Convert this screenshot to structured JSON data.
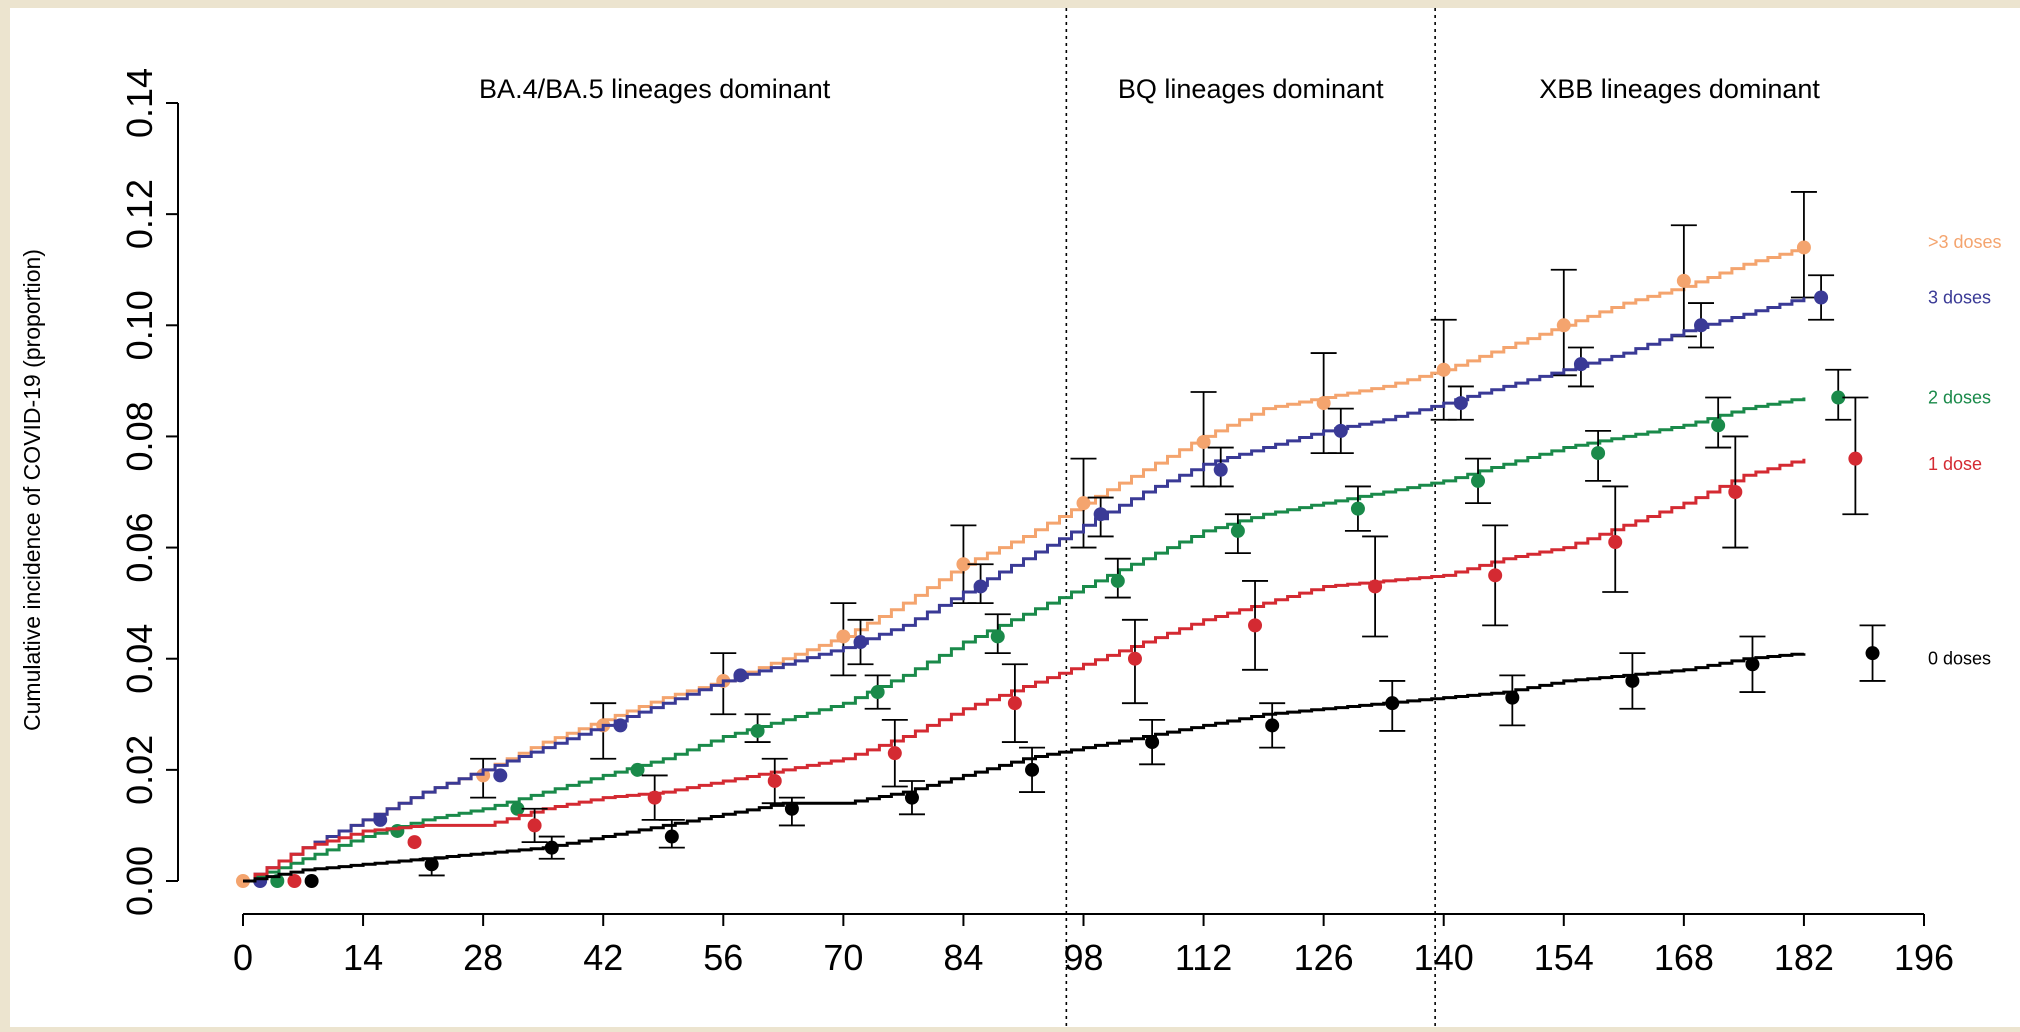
{
  "chart_data": {
    "type": "line",
    "title": "",
    "xlabel": "",
    "ylabel": "Cumulative incidence of COVID-19 (proportion)",
    "xlim": [
      0,
      196
    ],
    "ylim": [
      0,
      0.14
    ],
    "x_ticks": [
      "0",
      "14",
      "28",
      "42",
      "56",
      "70",
      "84",
      "98",
      "112",
      "126",
      "140",
      "154",
      "168",
      "182",
      "196"
    ],
    "y_ticks": [
      "0.00",
      "0.02",
      "0.04",
      "0.06",
      "0.08",
      "0.10",
      "0.12",
      "0.14"
    ],
    "periods": [
      {
        "label": "BA.4/BA.5 lineages dominant",
        "x_start": 0,
        "x_end": 96
      },
      {
        "label": "BQ lineages dominant",
        "x_start": 96,
        "x_end": 139
      },
      {
        "label": "XBB lineages dominant",
        "x_start": 139,
        "x_end": 196
      }
    ],
    "period_boundaries": [
      96,
      139
    ],
    "series": [
      {
        "name": ">3 doses",
        "color": "#f4a46e",
        "x": [
          0,
          7,
          14,
          21,
          28,
          35,
          42,
          49,
          56,
          63,
          70,
          77,
          84,
          91,
          98,
          105,
          112,
          119,
          126,
          133,
          140,
          147,
          154,
          161,
          168,
          175,
          182
        ],
        "y": [
          0,
          0.006,
          0.011,
          0.016,
          0.02,
          0.025,
          0.029,
          0.033,
          0.036,
          0.04,
          0.044,
          0.05,
          0.057,
          0.062,
          0.068,
          0.074,
          0.08,
          0.085,
          0.087,
          0.089,
          0.092,
          0.096,
          0.1,
          0.104,
          0.107,
          0.111,
          0.114
        ],
        "points": [
          {
            "x": 0,
            "y": 0.0
          },
          {
            "x": 28,
            "y": 0.019,
            "lo": 0.015,
            "hi": 0.022
          },
          {
            "x": 42,
            "y": 0.028,
            "lo": 0.022,
            "hi": 0.032
          },
          {
            "x": 56,
            "y": 0.036,
            "lo": 0.03,
            "hi": 0.041
          },
          {
            "x": 70,
            "y": 0.044,
            "lo": 0.037,
            "hi": 0.05
          },
          {
            "x": 84,
            "y": 0.057,
            "lo": 0.05,
            "hi": 0.064
          },
          {
            "x": 98,
            "y": 0.068,
            "lo": 0.06,
            "hi": 0.076
          },
          {
            "x": 112,
            "y": 0.079,
            "lo": 0.071,
            "hi": 0.088
          },
          {
            "x": 126,
            "y": 0.086,
            "lo": 0.077,
            "hi": 0.095
          },
          {
            "x": 140,
            "y": 0.092,
            "lo": 0.083,
            "hi": 0.101
          },
          {
            "x": 154,
            "y": 0.1,
            "lo": 0.091,
            "hi": 0.11
          },
          {
            "x": 168,
            "y": 0.108,
            "lo": 0.098,
            "hi": 0.118
          },
          {
            "x": 182,
            "y": 0.114,
            "lo": 0.105,
            "hi": 0.124
          }
        ]
      },
      {
        "name": "3 doses",
        "color": "#3a3a96",
        "x": [
          0,
          7,
          14,
          21,
          28,
          35,
          42,
          49,
          56,
          63,
          70,
          77,
          84,
          91,
          98,
          105,
          112,
          119,
          126,
          133,
          140,
          147,
          154,
          161,
          168,
          175,
          182
        ],
        "y": [
          0,
          0.006,
          0.011,
          0.016,
          0.02,
          0.024,
          0.028,
          0.032,
          0.036,
          0.039,
          0.042,
          0.046,
          0.052,
          0.058,
          0.064,
          0.07,
          0.075,
          0.078,
          0.081,
          0.083,
          0.086,
          0.089,
          0.092,
          0.095,
          0.099,
          0.102,
          0.105
        ],
        "points": [
          {
            "x": 2,
            "y": 0.0
          },
          {
            "x": 16,
            "y": 0.011
          },
          {
            "x": 30,
            "y": 0.019
          },
          {
            "x": 44,
            "y": 0.028
          },
          {
            "x": 58,
            "y": 0.037
          },
          {
            "x": 72,
            "y": 0.043,
            "lo": 0.039,
            "hi": 0.047
          },
          {
            "x": 86,
            "y": 0.053,
            "lo": 0.05,
            "hi": 0.057
          },
          {
            "x": 100,
            "y": 0.066,
            "lo": 0.062,
            "hi": 0.069
          },
          {
            "x": 114,
            "y": 0.074,
            "lo": 0.071,
            "hi": 0.078
          },
          {
            "x": 128,
            "y": 0.081,
            "lo": 0.077,
            "hi": 0.085
          },
          {
            "x": 142,
            "y": 0.086,
            "lo": 0.083,
            "hi": 0.089
          },
          {
            "x": 156,
            "y": 0.093,
            "lo": 0.089,
            "hi": 0.096
          },
          {
            "x": 170,
            "y": 0.1,
            "lo": 0.096,
            "hi": 0.104
          },
          {
            "x": 184,
            "y": 0.105,
            "lo": 0.101,
            "hi": 0.109
          }
        ]
      },
      {
        "name": "2 doses",
        "color": "#1a8a4a",
        "x": [
          0,
          7,
          14,
          21,
          28,
          35,
          42,
          49,
          56,
          63,
          70,
          77,
          84,
          91,
          98,
          105,
          112,
          119,
          126,
          133,
          140,
          147,
          154,
          161,
          168,
          175,
          182
        ],
        "y": [
          0,
          0.004,
          0.008,
          0.011,
          0.013,
          0.016,
          0.019,
          0.022,
          0.026,
          0.029,
          0.032,
          0.037,
          0.043,
          0.048,
          0.053,
          0.058,
          0.063,
          0.066,
          0.068,
          0.07,
          0.072,
          0.075,
          0.078,
          0.08,
          0.082,
          0.085,
          0.087
        ],
        "points": [
          {
            "x": 4,
            "y": 0.0
          },
          {
            "x": 18,
            "y": 0.009
          },
          {
            "x": 32,
            "y": 0.013
          },
          {
            "x": 46,
            "y": 0.02
          },
          {
            "x": 60,
            "y": 0.027,
            "lo": 0.025,
            "hi": 0.03
          },
          {
            "x": 74,
            "y": 0.034,
            "lo": 0.031,
            "hi": 0.037
          },
          {
            "x": 88,
            "y": 0.044,
            "lo": 0.041,
            "hi": 0.048
          },
          {
            "x": 102,
            "y": 0.054,
            "lo": 0.051,
            "hi": 0.058
          },
          {
            "x": 116,
            "y": 0.063,
            "lo": 0.059,
            "hi": 0.066
          },
          {
            "x": 130,
            "y": 0.067,
            "lo": 0.063,
            "hi": 0.071
          },
          {
            "x": 144,
            "y": 0.072,
            "lo": 0.068,
            "hi": 0.076
          },
          {
            "x": 158,
            "y": 0.077,
            "lo": 0.072,
            "hi": 0.081
          },
          {
            "x": 172,
            "y": 0.082,
            "lo": 0.078,
            "hi": 0.087
          },
          {
            "x": 186,
            "y": 0.087,
            "lo": 0.083,
            "hi": 0.092
          }
        ]
      },
      {
        "name": "1 dose",
        "color": "#d42a32",
        "x": [
          0,
          7,
          14,
          21,
          28,
          35,
          42,
          49,
          56,
          63,
          70,
          77,
          84,
          91,
          98,
          105,
          112,
          119,
          126,
          133,
          140,
          147,
          154,
          161,
          168,
          175,
          182
        ],
        "y": [
          0,
          0.006,
          0.009,
          0.01,
          0.01,
          0.013,
          0.015,
          0.016,
          0.018,
          0.02,
          0.022,
          0.026,
          0.031,
          0.035,
          0.039,
          0.043,
          0.047,
          0.05,
          0.053,
          0.054,
          0.055,
          0.058,
          0.06,
          0.064,
          0.068,
          0.073,
          0.076
        ],
        "points": [
          {
            "x": 6,
            "y": 0.0
          },
          {
            "x": 20,
            "y": 0.007
          },
          {
            "x": 34,
            "y": 0.01,
            "lo": 0.007,
            "hi": 0.013
          },
          {
            "x": 48,
            "y": 0.015,
            "lo": 0.011,
            "hi": 0.019
          },
          {
            "x": 62,
            "y": 0.018,
            "lo": 0.014,
            "hi": 0.022
          },
          {
            "x": 76,
            "y": 0.023,
            "lo": 0.017,
            "hi": 0.029
          },
          {
            "x": 90,
            "y": 0.032,
            "lo": 0.025,
            "hi": 0.039
          },
          {
            "x": 104,
            "y": 0.04,
            "lo": 0.032,
            "hi": 0.047
          },
          {
            "x": 118,
            "y": 0.046,
            "lo": 0.038,
            "hi": 0.054
          },
          {
            "x": 132,
            "y": 0.053,
            "lo": 0.044,
            "hi": 0.062
          },
          {
            "x": 146,
            "y": 0.055,
            "lo": 0.046,
            "hi": 0.064
          },
          {
            "x": 160,
            "y": 0.061,
            "lo": 0.052,
            "hi": 0.071
          },
          {
            "x": 174,
            "y": 0.07,
            "lo": 0.06,
            "hi": 0.08
          },
          {
            "x": 188,
            "y": 0.076,
            "lo": 0.066,
            "hi": 0.087
          }
        ]
      },
      {
        "name": "0 doses",
        "color": "#000000",
        "x": [
          0,
          7,
          14,
          21,
          28,
          35,
          42,
          49,
          56,
          63,
          70,
          77,
          84,
          91,
          98,
          105,
          112,
          119,
          126,
          133,
          140,
          147,
          154,
          161,
          168,
          175,
          182
        ],
        "y": [
          0,
          0.002,
          0.003,
          0.004,
          0.005,
          0.006,
          0.008,
          0.01,
          0.012,
          0.014,
          0.014,
          0.016,
          0.019,
          0.022,
          0.024,
          0.026,
          0.028,
          0.03,
          0.031,
          0.032,
          0.033,
          0.034,
          0.036,
          0.037,
          0.038,
          0.04,
          0.041
        ],
        "points": [
          {
            "x": 8,
            "y": 0.0
          },
          {
            "x": 22,
            "y": 0.003,
            "lo": 0.001,
            "hi": 0.004
          },
          {
            "x": 36,
            "y": 0.006,
            "lo": 0.004,
            "hi": 0.008
          },
          {
            "x": 50,
            "y": 0.008,
            "lo": 0.006,
            "hi": 0.011
          },
          {
            "x": 64,
            "y": 0.013,
            "lo": 0.01,
            "hi": 0.015
          },
          {
            "x": 78,
            "y": 0.015,
            "lo": 0.012,
            "hi": 0.018
          },
          {
            "x": 92,
            "y": 0.02,
            "lo": 0.016,
            "hi": 0.024
          },
          {
            "x": 106,
            "y": 0.025,
            "lo": 0.021,
            "hi": 0.029
          },
          {
            "x": 120,
            "y": 0.028,
            "lo": 0.024,
            "hi": 0.032
          },
          {
            "x": 134,
            "y": 0.032,
            "lo": 0.027,
            "hi": 0.036
          },
          {
            "x": 148,
            "y": 0.033,
            "lo": 0.028,
            "hi": 0.037
          },
          {
            "x": 162,
            "y": 0.036,
            "lo": 0.031,
            "hi": 0.041
          },
          {
            "x": 176,
            "y": 0.039,
            "lo": 0.034,
            "hi": 0.044
          },
          {
            "x": 190,
            "y": 0.041,
            "lo": 0.036,
            "hi": 0.046
          }
        ]
      }
    ]
  }
}
